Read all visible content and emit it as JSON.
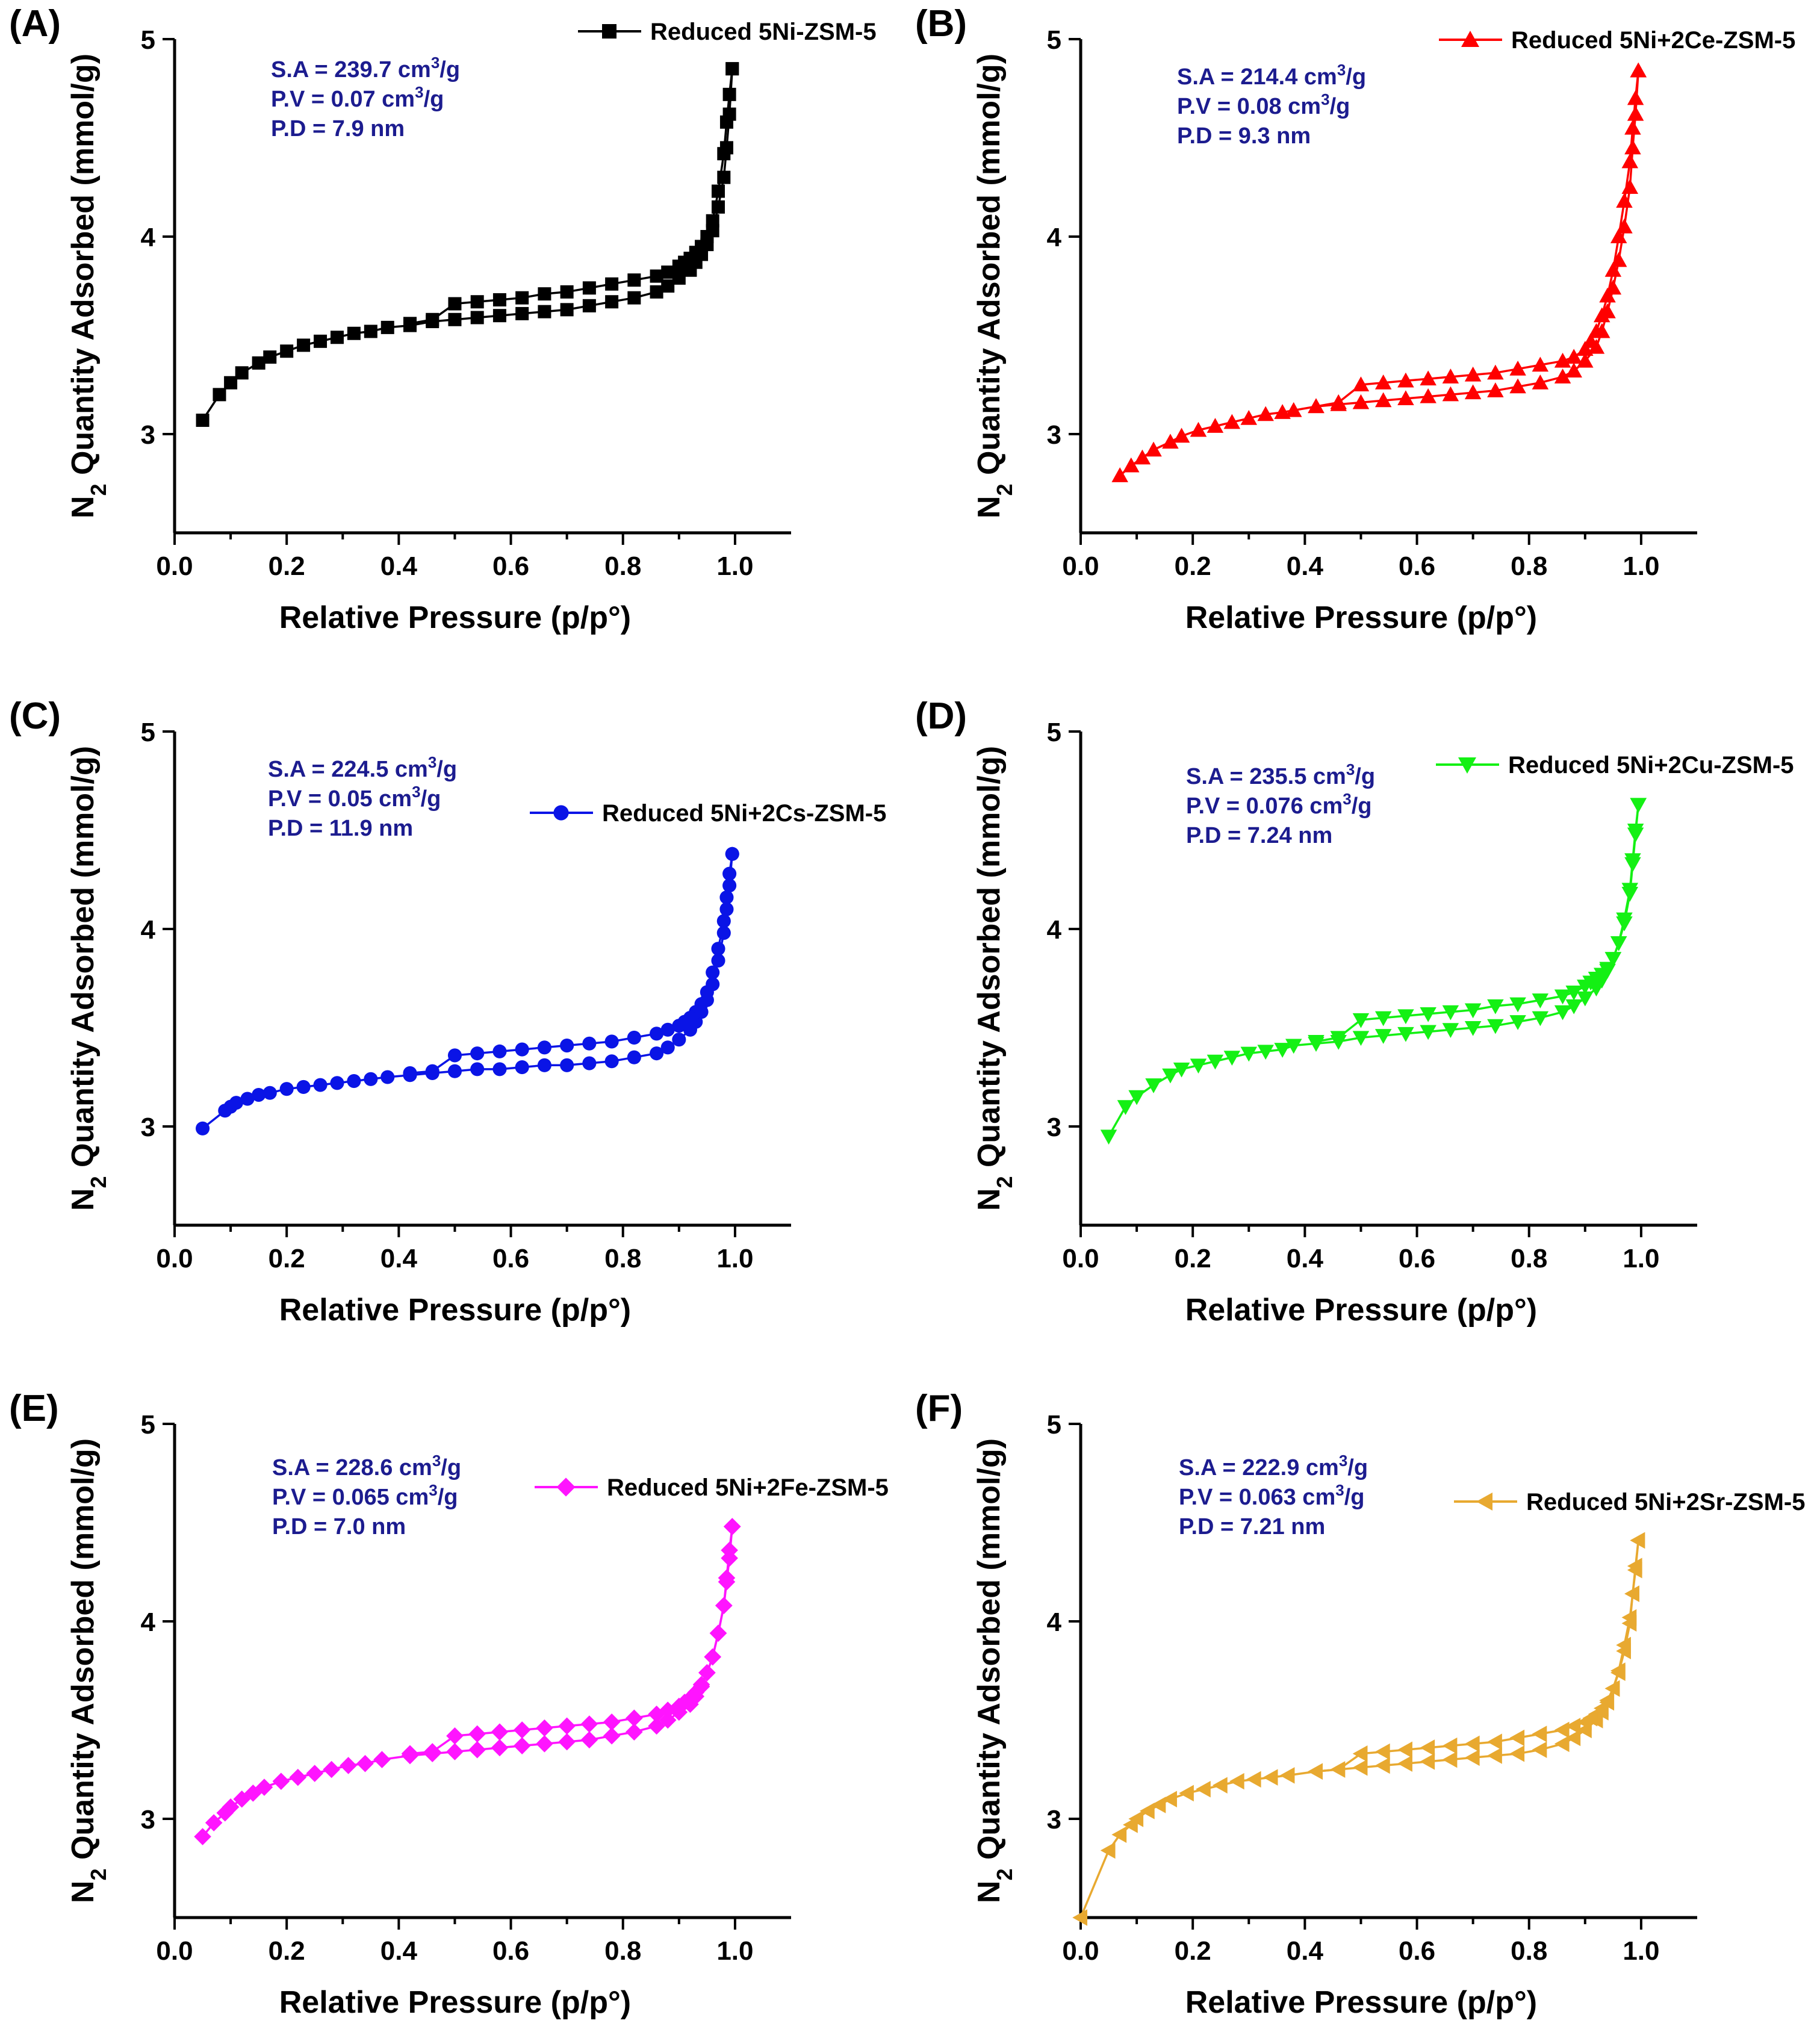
{
  "chart_data": [
    {
      "type": "line",
      "panel_label": "(A)",
      "series_name": "Reduced 5Ni-ZSM-5",
      "color": "#000000",
      "marker": "square",
      "legend_position": "top-right",
      "annotations": [
        {
          "prefix": "S.A = 239.7 cm",
          "sup": "3",
          "suffix": "/g"
        },
        {
          "prefix": "P.V = 0.07 cm",
          "sup": "3",
          "suffix": "/g"
        },
        {
          "prefix": "P.D = 7.9 nm",
          "sup": "",
          "suffix": ""
        }
      ],
      "xlabel": "Relative Pressure (p/p°)",
      "ylabel_prefix": "N",
      "ylabel_sub": "2",
      "ylabel_suffix": " Quantity Adsorbed (mmol/g)",
      "xlim": [
        0.0,
        1.1
      ],
      "ylim": [
        2.5,
        5.0
      ],
      "xticks": [
        "0.0",
        "0.2",
        "0.4",
        "0.6",
        "0.8",
        "1.0"
      ],
      "yticks": [
        "3",
        "4",
        "5"
      ],
      "adsorption": {
        "x": [
          0.05,
          0.08,
          0.1,
          0.12,
          0.15,
          0.17,
          0.2,
          0.23,
          0.26,
          0.29,
          0.32,
          0.35,
          0.38,
          0.42,
          0.46,
          0.5,
          0.54,
          0.58,
          0.62,
          0.66,
          0.7,
          0.74,
          0.78,
          0.82,
          0.86,
          0.88,
          0.9,
          0.92,
          0.93,
          0.94,
          0.95,
          0.96,
          0.97,
          0.98,
          0.985,
          0.99,
          0.995
        ],
        "y": [
          3.07,
          3.2,
          3.26,
          3.31,
          3.36,
          3.39,
          3.42,
          3.45,
          3.47,
          3.49,
          3.51,
          3.52,
          3.54,
          3.55,
          3.57,
          3.58,
          3.59,
          3.6,
          3.61,
          3.62,
          3.63,
          3.65,
          3.67,
          3.69,
          3.72,
          3.75,
          3.79,
          3.83,
          3.87,
          3.91,
          3.96,
          4.03,
          4.15,
          4.3,
          4.45,
          4.62,
          4.85
        ]
      },
      "desorption": {
        "x": [
          0.995,
          0.99,
          0.985,
          0.98,
          0.97,
          0.96,
          0.95,
          0.94,
          0.93,
          0.92,
          0.91,
          0.9,
          0.88,
          0.86,
          0.82,
          0.78,
          0.74,
          0.7,
          0.66,
          0.62,
          0.58,
          0.54,
          0.5,
          0.46,
          0.42
        ],
        "y": [
          4.85,
          4.72,
          4.58,
          4.42,
          4.23,
          4.08,
          4.0,
          3.95,
          3.92,
          3.89,
          3.87,
          3.85,
          3.82,
          3.8,
          3.78,
          3.76,
          3.74,
          3.72,
          3.71,
          3.69,
          3.68,
          3.67,
          3.66,
          3.58,
          3.56
        ]
      }
    },
    {
      "type": "line",
      "panel_label": "(B)",
      "series_name": "Reduced 5Ni+2Ce-ZSM-5",
      "color": "#ff0000",
      "marker": "triangle-up",
      "legend_position": "top-right",
      "annotations": [
        {
          "prefix": "S.A = 214.4 cm",
          "sup": "3",
          "suffix": "/g"
        },
        {
          "prefix": "P.V = 0.08 cm",
          "sup": "3",
          "suffix": "/g"
        },
        {
          "prefix": "P.D = 9.3 nm",
          "sup": "",
          "suffix": ""
        }
      ],
      "xlabel": "Relative Pressure (p/p°)",
      "ylabel_prefix": "N",
      "ylabel_sub": "2",
      "ylabel_suffix": " Quantity Adsorbed (mmol/g)",
      "xlim": [
        0.0,
        1.1
      ],
      "ylim": [
        2.5,
        5.0
      ],
      "xticks": [
        "0.0",
        "0.2",
        "0.4",
        "0.6",
        "0.8",
        "1.0"
      ],
      "yticks": [
        "3",
        "4",
        "5"
      ],
      "adsorption": {
        "x": [
          0.07,
          0.09,
          0.11,
          0.13,
          0.16,
          0.18,
          0.21,
          0.24,
          0.27,
          0.3,
          0.33,
          0.36,
          0.38,
          0.42,
          0.46,
          0.5,
          0.54,
          0.58,
          0.62,
          0.66,
          0.7,
          0.74,
          0.78,
          0.82,
          0.86,
          0.88,
          0.9,
          0.92,
          0.93,
          0.94,
          0.95,
          0.96,
          0.97,
          0.98,
          0.985,
          0.99,
          0.995
        ],
        "y": [
          2.79,
          2.84,
          2.88,
          2.92,
          2.96,
          2.99,
          3.02,
          3.04,
          3.06,
          3.08,
          3.1,
          3.11,
          3.12,
          3.14,
          3.15,
          3.16,
          3.17,
          3.18,
          3.19,
          3.2,
          3.21,
          3.22,
          3.24,
          3.26,
          3.29,
          3.32,
          3.37,
          3.44,
          3.52,
          3.62,
          3.74,
          3.88,
          4.05,
          4.25,
          4.45,
          4.62,
          4.84
        ]
      },
      "desorption": {
        "x": [
          0.995,
          0.99,
          0.985,
          0.98,
          0.97,
          0.96,
          0.95,
          0.94,
          0.93,
          0.92,
          0.91,
          0.9,
          0.88,
          0.86,
          0.82,
          0.78,
          0.74,
          0.7,
          0.66,
          0.62,
          0.58,
          0.54,
          0.5,
          0.46,
          0.42
        ],
        "y": [
          4.84,
          4.7,
          4.55,
          4.38,
          4.18,
          4.0,
          3.83,
          3.7,
          3.6,
          3.52,
          3.47,
          3.43,
          3.39,
          3.37,
          3.35,
          3.33,
          3.31,
          3.3,
          3.29,
          3.28,
          3.27,
          3.26,
          3.25,
          3.16,
          3.14
        ]
      }
    },
    {
      "type": "line",
      "panel_label": "(C)",
      "series_name": "Reduced 5Ni+2Cs-ZSM-5",
      "color": "#0a14e6",
      "marker": "circle",
      "legend_position": "top-right",
      "annotations": [
        {
          "prefix": "S.A = 224.5 cm",
          "sup": "3",
          "suffix": "/g"
        },
        {
          "prefix": "P.V = 0.05 cm",
          "sup": "3",
          "suffix": "/g"
        },
        {
          "prefix": "P.D = 11.9 nm",
          "sup": "",
          "suffix": ""
        }
      ],
      "xlabel": "Relative Pressure (p/p°)",
      "ylabel_prefix": "N",
      "ylabel_sub": "2",
      "ylabel_suffix": " Quantity Adsorbed (mmol/g)",
      "xlim": [
        0.0,
        1.1
      ],
      "ylim": [
        2.5,
        5.0
      ],
      "xticks": [
        "0.0",
        "0.2",
        "0.4",
        "0.6",
        "0.8",
        "1.0"
      ],
      "yticks": [
        "3",
        "4",
        "5"
      ],
      "adsorption": {
        "x": [
          0.05,
          0.09,
          0.1,
          0.11,
          0.13,
          0.15,
          0.17,
          0.2,
          0.23,
          0.26,
          0.29,
          0.32,
          0.35,
          0.38,
          0.42,
          0.46,
          0.5,
          0.54,
          0.58,
          0.62,
          0.66,
          0.7,
          0.74,
          0.78,
          0.82,
          0.86,
          0.88,
          0.9,
          0.92,
          0.93,
          0.94,
          0.95,
          0.96,
          0.97,
          0.98,
          0.985,
          0.99,
          0.995
        ],
        "y": [
          2.99,
          3.08,
          3.1,
          3.12,
          3.14,
          3.16,
          3.17,
          3.19,
          3.2,
          3.21,
          3.22,
          3.23,
          3.24,
          3.25,
          3.26,
          3.27,
          3.28,
          3.29,
          3.29,
          3.3,
          3.31,
          3.31,
          3.32,
          3.33,
          3.35,
          3.37,
          3.4,
          3.44,
          3.49,
          3.53,
          3.58,
          3.64,
          3.72,
          3.84,
          3.98,
          4.1,
          4.22,
          4.38
        ]
      },
      "desorption": {
        "x": [
          0.995,
          0.99,
          0.985,
          0.98,
          0.97,
          0.96,
          0.95,
          0.94,
          0.93,
          0.92,
          0.91,
          0.9,
          0.88,
          0.86,
          0.82,
          0.78,
          0.74,
          0.7,
          0.66,
          0.62,
          0.58,
          0.54,
          0.5,
          0.46,
          0.42
        ],
        "y": [
          4.38,
          4.28,
          4.16,
          4.04,
          3.9,
          3.78,
          3.68,
          3.62,
          3.58,
          3.55,
          3.53,
          3.51,
          3.49,
          3.47,
          3.45,
          3.43,
          3.42,
          3.41,
          3.4,
          3.39,
          3.38,
          3.37,
          3.36,
          3.28,
          3.27
        ]
      }
    },
    {
      "type": "line",
      "panel_label": "(D)",
      "series_name": "Reduced 5Ni+2Cu-ZSM-5",
      "color": "#14f014",
      "marker": "triangle-down",
      "legend_position": "top-right",
      "annotations": [
        {
          "prefix": "S.A = 235.5 cm",
          "sup": "3",
          "suffix": "/g"
        },
        {
          "prefix": "P.V = 0.076 cm",
          "sup": "3",
          "suffix": "/g"
        },
        {
          "prefix": "P.D = 7.24 nm",
          "sup": "",
          "suffix": ""
        }
      ],
      "xlabel": "Relative Pressure (p/p°)",
      "ylabel_prefix": "N",
      "ylabel_sub": "2",
      "ylabel_suffix": " Quantity Adsorbed (mmol/g)",
      "xlim": [
        0.0,
        1.1
      ],
      "ylim": [
        2.5,
        5.0
      ],
      "xticks": [
        "0.0",
        "0.2",
        "0.4",
        "0.6",
        "0.8",
        "1.0"
      ],
      "yticks": [
        "3",
        "4",
        "5"
      ],
      "adsorption": {
        "x": [
          0.05,
          0.08,
          0.1,
          0.13,
          0.16,
          0.18,
          0.21,
          0.24,
          0.27,
          0.3,
          0.33,
          0.36,
          0.38,
          0.42,
          0.46,
          0.5,
          0.54,
          0.58,
          0.62,
          0.66,
          0.7,
          0.74,
          0.78,
          0.82,
          0.86,
          0.88,
          0.9,
          0.92,
          0.93,
          0.94,
          0.95,
          0.96,
          0.97,
          0.98,
          0.985,
          0.99,
          0.995
        ],
        "y": [
          2.95,
          3.1,
          3.15,
          3.21,
          3.26,
          3.29,
          3.31,
          3.33,
          3.35,
          3.37,
          3.38,
          3.39,
          3.41,
          3.42,
          3.43,
          3.45,
          3.46,
          3.47,
          3.48,
          3.49,
          3.5,
          3.51,
          3.53,
          3.55,
          3.58,
          3.61,
          3.65,
          3.7,
          3.74,
          3.79,
          3.85,
          3.93,
          4.03,
          4.18,
          4.33,
          4.48,
          4.63
        ]
      },
      "desorption": {
        "x": [
          0.995,
          0.99,
          0.985,
          0.98,
          0.97,
          0.96,
          0.95,
          0.94,
          0.93,
          0.92,
          0.91,
          0.9,
          0.88,
          0.86,
          0.82,
          0.78,
          0.74,
          0.7,
          0.66,
          0.62,
          0.58,
          0.54,
          0.5,
          0.46,
          0.42
        ],
        "y": [
          4.63,
          4.5,
          4.35,
          4.2,
          4.05,
          3.93,
          3.85,
          3.8,
          3.77,
          3.75,
          3.73,
          3.71,
          3.68,
          3.66,
          3.64,
          3.62,
          3.61,
          3.59,
          3.58,
          3.57,
          3.56,
          3.55,
          3.54,
          3.45,
          3.43
        ]
      }
    },
    {
      "type": "line",
      "panel_label": "(E)",
      "series_name": "Reduced 5Ni+2Fe-ZSM-5",
      "color": "#ff14ff",
      "marker": "diamond",
      "legend_position": "top-right",
      "annotations": [
        {
          "prefix": "S.A = 228.6 cm",
          "sup": "3",
          "suffix": "/g"
        },
        {
          "prefix": "P.V = 0.065 cm",
          "sup": "3",
          "suffix": "/g"
        },
        {
          "prefix": "P.D = 7.0 nm",
          "sup": "",
          "suffix": ""
        }
      ],
      "xlabel": "Relative Pressure (p/p°)",
      "ylabel_prefix": "N",
      "ylabel_sub": "2",
      "ylabel_suffix": " Quantity Adsorbed (mmol/g)",
      "xlim": [
        0.0,
        1.1
      ],
      "ylim": [
        2.5,
        5.0
      ],
      "xticks": [
        "0.0",
        "0.2",
        "0.4",
        "0.6",
        "0.8",
        "1.0"
      ],
      "yticks": [
        "3",
        "4",
        "5"
      ],
      "adsorption": {
        "x": [
          0.05,
          0.07,
          0.09,
          0.1,
          0.12,
          0.14,
          0.16,
          0.19,
          0.22,
          0.25,
          0.28,
          0.31,
          0.34,
          0.37,
          0.42,
          0.46,
          0.5,
          0.54,
          0.58,
          0.62,
          0.66,
          0.7,
          0.74,
          0.78,
          0.82,
          0.86,
          0.88,
          0.9,
          0.92,
          0.93,
          0.94,
          0.95,
          0.96,
          0.97,
          0.98,
          0.985,
          0.99,
          0.995
        ],
        "y": [
          2.91,
          2.98,
          3.03,
          3.06,
          3.1,
          3.13,
          3.16,
          3.19,
          3.21,
          3.23,
          3.25,
          3.27,
          3.28,
          3.3,
          3.32,
          3.33,
          3.34,
          3.35,
          3.36,
          3.37,
          3.38,
          3.39,
          3.4,
          3.42,
          3.44,
          3.47,
          3.5,
          3.54,
          3.58,
          3.62,
          3.67,
          3.74,
          3.82,
          3.94,
          4.08,
          4.2,
          4.32,
          4.48
        ]
      },
      "desorption": {
        "x": [
          0.995,
          0.99,
          0.985,
          0.98,
          0.97,
          0.96,
          0.95,
          0.94,
          0.93,
          0.92,
          0.91,
          0.9,
          0.88,
          0.86,
          0.82,
          0.78,
          0.74,
          0.7,
          0.66,
          0.62,
          0.58,
          0.54,
          0.5,
          0.46,
          0.42
        ],
        "y": [
          4.48,
          4.36,
          4.22,
          4.08,
          3.94,
          3.82,
          3.74,
          3.68,
          3.64,
          3.61,
          3.59,
          3.57,
          3.55,
          3.53,
          3.51,
          3.49,
          3.48,
          3.47,
          3.46,
          3.45,
          3.44,
          3.43,
          3.42,
          3.34,
          3.33
        ]
      }
    },
    {
      "type": "line",
      "panel_label": "(F)",
      "series_name": "Reduced 5Ni+2Sr-ZSM-5",
      "color": "#e8a930",
      "marker": "triangle-left",
      "legend_position": "top-right",
      "annotations": [
        {
          "prefix": "S.A = 222.9 cm",
          "sup": "3",
          "suffix": "/g"
        },
        {
          "prefix": "P.V = 0.063 cm",
          "sup": "3",
          "suffix": "/g"
        },
        {
          "prefix": "P.D = 7.21 nm",
          "sup": "",
          "suffix": ""
        }
      ],
      "xlabel": "Relative Pressure (p/p°)",
      "ylabel_prefix": "N",
      "ylabel_sub": "2",
      "ylabel_suffix": " Quantity Adsorbed (mmol/g)",
      "xlim": [
        0.0,
        1.1
      ],
      "ylim": [
        2.5,
        5.0
      ],
      "xticks": [
        "0.0",
        "0.2",
        "0.4",
        "0.6",
        "0.8",
        "1.0"
      ],
      "yticks": [
        "3",
        "4",
        "5"
      ],
      "adsorption": {
        "x": [
          0.0,
          0.05,
          0.07,
          0.09,
          0.1,
          0.12,
          0.14,
          0.16,
          0.19,
          0.22,
          0.25,
          0.28,
          0.31,
          0.34,
          0.37,
          0.42,
          0.46,
          0.5,
          0.54,
          0.58,
          0.62,
          0.66,
          0.7,
          0.74,
          0.78,
          0.82,
          0.86,
          0.88,
          0.9,
          0.92,
          0.93,
          0.94,
          0.95,
          0.96,
          0.97,
          0.98,
          0.985,
          0.99,
          0.995
        ],
        "y": [
          2.5,
          2.84,
          2.92,
          2.97,
          3.0,
          3.04,
          3.07,
          3.1,
          3.13,
          3.15,
          3.17,
          3.19,
          3.2,
          3.21,
          3.22,
          3.24,
          3.25,
          3.26,
          3.27,
          3.28,
          3.29,
          3.3,
          3.31,
          3.32,
          3.33,
          3.35,
          3.38,
          3.41,
          3.45,
          3.5,
          3.54,
          3.59,
          3.66,
          3.75,
          3.88,
          4.02,
          4.14,
          4.26,
          4.41
        ]
      },
      "desorption": {
        "x": [
          0.995,
          0.99,
          0.985,
          0.98,
          0.97,
          0.96,
          0.95,
          0.94,
          0.93,
          0.92,
          0.91,
          0.9,
          0.88,
          0.86,
          0.82,
          0.78,
          0.74,
          0.7,
          0.66,
          0.62,
          0.58,
          0.54,
          0.5,
          0.46,
          0.42
        ],
        "y": [
          4.41,
          4.28,
          4.14,
          3.99,
          3.85,
          3.74,
          3.66,
          3.6,
          3.56,
          3.53,
          3.51,
          3.49,
          3.47,
          3.45,
          3.43,
          3.41,
          3.39,
          3.38,
          3.37,
          3.36,
          3.35,
          3.34,
          3.33,
          3.25,
          3.24
        ]
      }
    }
  ]
}
